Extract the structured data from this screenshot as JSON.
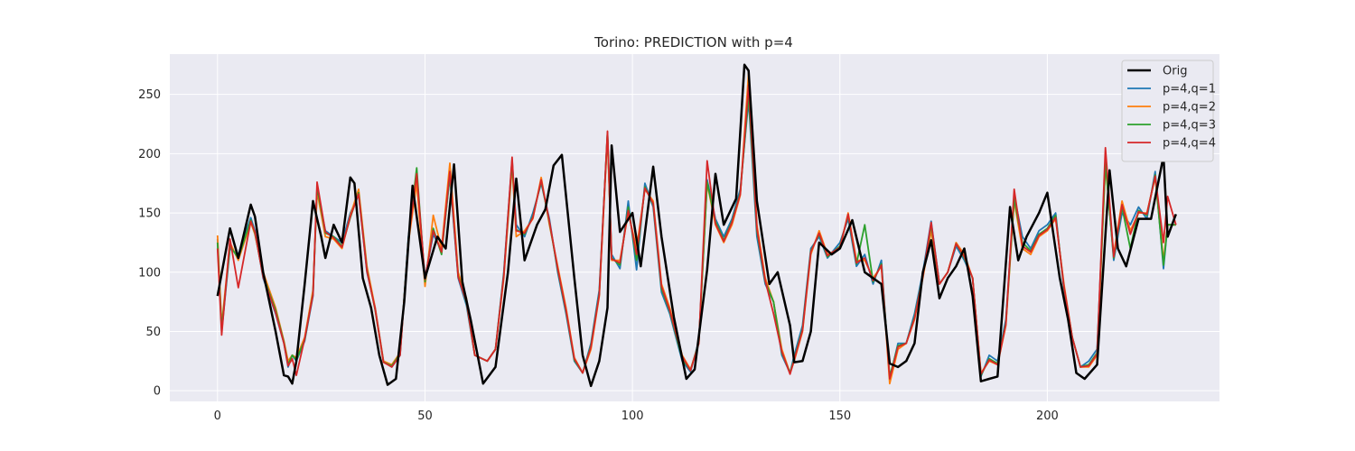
{
  "chart_data": {
    "type": "line",
    "title": "Torino: PREDICTION with p=4",
    "xlabel": "",
    "ylabel": "",
    "xlim": [
      -11.5,
      241.5
    ],
    "ylim": [
      -9,
      284
    ],
    "xticks": [
      0,
      50,
      100,
      150,
      200
    ],
    "yticks": [
      0,
      50,
      100,
      150,
      200,
      250
    ],
    "grid": true,
    "legend_position": "top-right",
    "series": [
      {
        "name": "Orig",
        "color": "#000000",
        "width": 2.5,
        "x": [
          0,
          3,
          5,
          8,
          9,
          11,
          14,
          16,
          17,
          18,
          19,
          21,
          23,
          25,
          26,
          28,
          30,
          32,
          33,
          35,
          37,
          39,
          41,
          43,
          45,
          47,
          50,
          53,
          55,
          57,
          59,
          61,
          64,
          67,
          70,
          72,
          74,
          77,
          79,
          81,
          83,
          86,
          88,
          90,
          92,
          94,
          95,
          97,
          100,
          102,
          105,
          107,
          110,
          113,
          115,
          118,
          120,
          122,
          125,
          127,
          128,
          130,
          133,
          135,
          138,
          139,
          141,
          143,
          145,
          148,
          150,
          153,
          156,
          160,
          162,
          164,
          166,
          168,
          170,
          172,
          174,
          176,
          178,
          180,
          182,
          184,
          186,
          188,
          191,
          193,
          195,
          198,
          200,
          203,
          205,
          207,
          209,
          212,
          215,
          217,
          219,
          222,
          225,
          228,
          229,
          231
        ],
        "values": [
          80,
          137,
          112,
          157,
          147,
          100,
          50,
          13,
          12,
          6,
          25,
          90,
          160,
          130,
          112,
          140,
          125,
          180,
          175,
          95,
          70,
          30,
          5,
          10,
          75,
          173,
          95,
          130,
          120,
          191,
          92,
          60,
          6,
          20,
          100,
          179,
          110,
          140,
          153,
          190,
          199,
          95,
          30,
          4,
          25,
          70,
          207,
          134,
          150,
          105,
          189,
          130,
          62,
          10,
          18,
          102,
          183,
          140,
          162,
          275,
          270,
          160,
          90,
          100,
          55,
          24,
          25,
          50,
          125,
          115,
          120,
          144,
          100,
          90,
          23,
          20,
          25,
          40,
          100,
          127,
          78,
          95,
          105,
          120,
          80,
          8,
          10,
          12,
          155,
          110,
          130,
          150,
          167,
          95,
          60,
          15,
          10,
          22,
          186,
          120,
          105,
          145,
          145,
          198,
          130,
          149
        ]
      },
      {
        "name": "p=4,q=1",
        "color": "#1f77b4",
        "width": 1.8,
        "x": [
          0,
          1,
          3,
          5,
          8,
          9,
          11,
          14,
          16,
          17,
          18,
          19,
          21,
          23,
          24,
          26,
          28,
          30,
          32,
          34,
          36,
          38,
          40,
          42,
          44,
          46,
          48,
          50,
          52,
          54,
          56,
          58,
          60,
          62,
          65,
          67,
          69,
          71,
          72,
          74,
          76,
          78,
          80,
          82,
          84,
          86,
          88,
          90,
          92,
          94,
          95,
          97,
          99,
          101,
          103,
          105,
          107,
          109,
          112,
          114,
          116,
          118,
          120,
          122,
          124,
          126,
          128,
          130,
          132,
          134,
          136,
          138,
          139,
          141,
          143,
          145,
          147,
          150,
          152,
          154,
          156,
          158,
          160,
          162,
          164,
          166,
          168,
          170,
          172,
          174,
          176,
          178,
          180,
          182,
          184,
          186,
          188,
          190,
          192,
          194,
          196,
          198,
          200,
          202,
          204,
          206,
          208,
          210,
          212,
          214,
          216,
          218,
          220,
          222,
          224,
          226,
          228,
          229,
          231
        ],
        "values": [
          128,
          50,
          120,
          115,
          146,
          135,
          95,
          65,
          40,
          20,
          30,
          25,
          42,
          80,
          170,
          135,
          130,
          125,
          150,
          165,
          100,
          70,
          25,
          20,
          30,
          130,
          180,
          95,
          132,
          118,
          180,
          95,
          72,
          30,
          25,
          35,
          100,
          195,
          140,
          130,
          150,
          175,
          145,
          100,
          65,
          25,
          15,
          40,
          85,
          217,
          115,
          103,
          160,
          102,
          175,
          155,
          83,
          65,
          25,
          16,
          42,
          178,
          145,
          130,
          145,
          170,
          245,
          130,
          90,
          75,
          30,
          15,
          30,
          55,
          120,
          130,
          112,
          125,
          145,
          105,
          115,
          90,
          110,
          10,
          40,
          40,
          65,
          100,
          143,
          90,
          100,
          122,
          110,
          95,
          12,
          30,
          25,
          60,
          165,
          130,
          120,
          135,
          140,
          150,
          85,
          45,
          20,
          25,
          35,
          195,
          110,
          150,
          140,
          155,
          145,
          185,
          103,
          140,
          140
        ]
      },
      {
        "name": "p=4,q=2",
        "color": "#ff7f0e",
        "width": 1.8,
        "x": [
          0,
          1,
          3,
          5,
          8,
          9,
          11,
          14,
          16,
          17,
          18,
          19,
          21,
          23,
          24,
          26,
          28,
          30,
          32,
          34,
          36,
          38,
          40,
          42,
          44,
          46,
          48,
          50,
          52,
          54,
          56,
          58,
          60,
          62,
          65,
          67,
          69,
          71,
          72,
          74,
          76,
          78,
          80,
          82,
          84,
          86,
          88,
          90,
          92,
          94,
          95,
          97,
          99,
          101,
          103,
          105,
          107,
          109,
          112,
          114,
          116,
          118,
          120,
          122,
          124,
          126,
          128,
          130,
          132,
          134,
          136,
          138,
          139,
          141,
          143,
          145,
          147,
          150,
          152,
          154,
          156,
          158,
          160,
          162,
          164,
          166,
          168,
          170,
          172,
          174,
          176,
          178,
          180,
          182,
          184,
          186,
          188,
          190,
          192,
          194,
          196,
          198,
          200,
          202,
          204,
          206,
          208,
          210,
          212,
          214,
          216,
          218,
          220,
          222,
          224,
          226,
          228,
          229,
          231
        ],
        "values": [
          131,
          55,
          125,
          110,
          142,
          132,
          100,
          70,
          42,
          25,
          30,
          28,
          45,
          85,
          168,
          130,
          128,
          120,
          148,
          170,
          105,
          70,
          25,
          22,
          32,
          125,
          175,
          88,
          148,
          120,
          192,
          100,
          78,
          30,
          25,
          35,
          95,
          190,
          130,
          135,
          145,
          180,
          140,
          105,
          70,
          28,
          15,
          35,
          80,
          215,
          110,
          110,
          150,
          120,
          170,
          160,
          90,
          70,
          30,
          18,
          40,
          175,
          140,
          125,
          140,
          165,
          268,
          140,
          95,
          75,
          35,
          15,
          25,
          50,
          115,
          135,
          115,
          120,
          150,
          110,
          110,
          95,
          105,
          6,
          35,
          40,
          60,
          95,
          135,
          90,
          100,
          125,
          115,
          95,
          15,
          25,
          22,
          55,
          160,
          120,
          115,
          130,
          135,
          145,
          90,
          45,
          20,
          20,
          30,
          190,
          115,
          160,
          135,
          150,
          150,
          180,
          110,
          140,
          140
        ]
      },
      {
        "name": "p=4,q=3",
        "color": "#2ca02c",
        "width": 1.8,
        "x": [
          0,
          1,
          3,
          5,
          8,
          9,
          11,
          14,
          16,
          17,
          18,
          19,
          21,
          23,
          24,
          26,
          28,
          30,
          32,
          34,
          36,
          38,
          40,
          42,
          44,
          46,
          48,
          50,
          52,
          54,
          56,
          58,
          60,
          62,
          65,
          67,
          69,
          71,
          72,
          74,
          76,
          78,
          80,
          82,
          84,
          86,
          88,
          90,
          92,
          94,
          95,
          97,
          99,
          101,
          103,
          105,
          107,
          109,
          112,
          114,
          116,
          118,
          120,
          122,
          124,
          126,
          128,
          130,
          132,
          134,
          136,
          138,
          139,
          141,
          143,
          145,
          147,
          150,
          152,
          154,
          156,
          158,
          160,
          162,
          164,
          166,
          168,
          170,
          172,
          174,
          176,
          178,
          180,
          182,
          184,
          186,
          188,
          190,
          192,
          194,
          196,
          198,
          200,
          202,
          204,
          206,
          208,
          210,
          212,
          214,
          216,
          218,
          220,
          222,
          224,
          226,
          228,
          229,
          231
        ],
        "values": [
          125,
          52,
          122,
          112,
          144,
          133,
          97,
          68,
          41,
          22,
          30,
          26,
          43,
          82,
          172,
          133,
          130,
          122,
          146,
          167,
          102,
          68,
          24,
          21,
          31,
          128,
          188,
          92,
          137,
          115,
          182,
          97,
          74,
          30,
          25,
          35,
          98,
          193,
          136,
          132,
          147,
          177,
          142,
          102,
          67,
          26,
          15,
          38,
          82,
          218,
          112,
          106,
          155,
          110,
          172,
          157,
          86,
          67,
          27,
          17,
          41,
          176,
          143,
          127,
          143,
          167,
          250,
          135,
          92,
          75,
          32,
          15,
          27,
          52,
          118,
          132,
          113,
          122,
          148,
          107,
          140,
          92,
          107,
          12,
          38,
          40,
          62,
          97,
          140,
          90,
          100,
          124,
          112,
          95,
          13,
          27,
          23,
          57,
          162,
          125,
          118,
          132,
          137,
          148,
          87,
          45,
          20,
          22,
          32,
          192,
          112,
          155,
          120,
          152,
          148,
          182,
          106,
          140,
          140
        ]
      },
      {
        "name": "p=4,q=4",
        "color": "#d62728",
        "width": 1.8,
        "x": [
          0,
          1,
          3,
          5,
          8,
          9,
          11,
          14,
          16,
          17,
          18,
          19,
          21,
          23,
          24,
          26,
          28,
          30,
          32,
          34,
          36,
          38,
          40,
          42,
          44,
          46,
          48,
          50,
          52,
          54,
          56,
          58,
          60,
          62,
          65,
          67,
          69,
          71,
          72,
          74,
          76,
          78,
          80,
          82,
          84,
          86,
          88,
          90,
          92,
          94,
          95,
          97,
          99,
          101,
          103,
          105,
          107,
          109,
          112,
          114,
          116,
          118,
          120,
          122,
          124,
          126,
          128,
          130,
          132,
          134,
          136,
          138,
          139,
          141,
          143,
          145,
          147,
          150,
          152,
          154,
          156,
          158,
          160,
          162,
          164,
          166,
          168,
          170,
          172,
          174,
          176,
          178,
          180,
          182,
          184,
          186,
          188,
          190,
          192,
          194,
          196,
          198,
          200,
          202,
          204,
          206,
          208,
          210,
          212,
          214,
          216,
          218,
          220,
          222,
          224,
          226,
          228,
          229,
          231
        ],
        "values": [
          120,
          47,
          128,
          87,
          143,
          134,
          96,
          66,
          40,
          21,
          27,
          13,
          44,
          81,
          176,
          134,
          129,
          121,
          147,
          166,
          101,
          69,
          24,
          20,
          30,
          127,
          183,
          94,
          135,
          117,
          185,
          96,
          75,
          30,
          25,
          35,
          97,
          197,
          135,
          133,
          146,
          178,
          143,
          103,
          68,
          27,
          15,
          37,
          81,
          219,
          111,
          108,
          152,
          115,
          171,
          158,
          88,
          68,
          29,
          17,
          40,
          194,
          141,
          126,
          142,
          166,
          258,
          137,
          93,
          65,
          33,
          14,
          26,
          51,
          117,
          133,
          114,
          121,
          149,
          108,
          112,
          93,
          106,
          10,
          37,
          40,
          61,
          96,
          142,
          90,
          100,
          124,
          113,
          95,
          14,
          26,
          22,
          56,
          170,
          122,
          117,
          131,
          136,
          146,
          88,
          45,
          20,
          21,
          31,
          205,
          113,
          157,
          132,
          151,
          149,
          181,
          125,
          164,
          140
        ]
      }
    ]
  }
}
